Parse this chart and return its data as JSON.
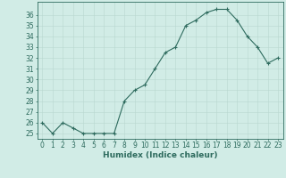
{
  "x": [
    0,
    1,
    2,
    3,
    4,
    5,
    6,
    7,
    8,
    9,
    10,
    11,
    12,
    13,
    14,
    15,
    16,
    17,
    18,
    19,
    20,
    21,
    22,
    23
  ],
  "y": [
    26,
    25,
    26,
    25.5,
    25,
    25,
    25,
    25,
    28,
    29,
    29.5,
    31,
    32.5,
    33,
    35,
    35.5,
    36.2,
    36.5,
    36.5,
    35.5,
    34,
    33,
    31.5,
    32
  ],
  "line_color": "#2e6b5e",
  "marker": "+",
  "bg_color": "#d1ece6",
  "grid_color": "#b8d8d0",
  "xlabel": "Humidex (Indice chaleur)",
  "ylim": [
    24.5,
    37.2
  ],
  "yticks": [
    25,
    26,
    27,
    28,
    29,
    30,
    31,
    32,
    33,
    34,
    35,
    36
  ],
  "xticks": [
    0,
    1,
    2,
    3,
    4,
    5,
    6,
    7,
    8,
    9,
    10,
    11,
    12,
    13,
    14,
    15,
    16,
    17,
    18,
    19,
    20,
    21,
    22,
    23
  ],
  "font_color": "#2e6b5e",
  "tick_labelsize": 5.5,
  "xlabel_fontsize": 6.5
}
